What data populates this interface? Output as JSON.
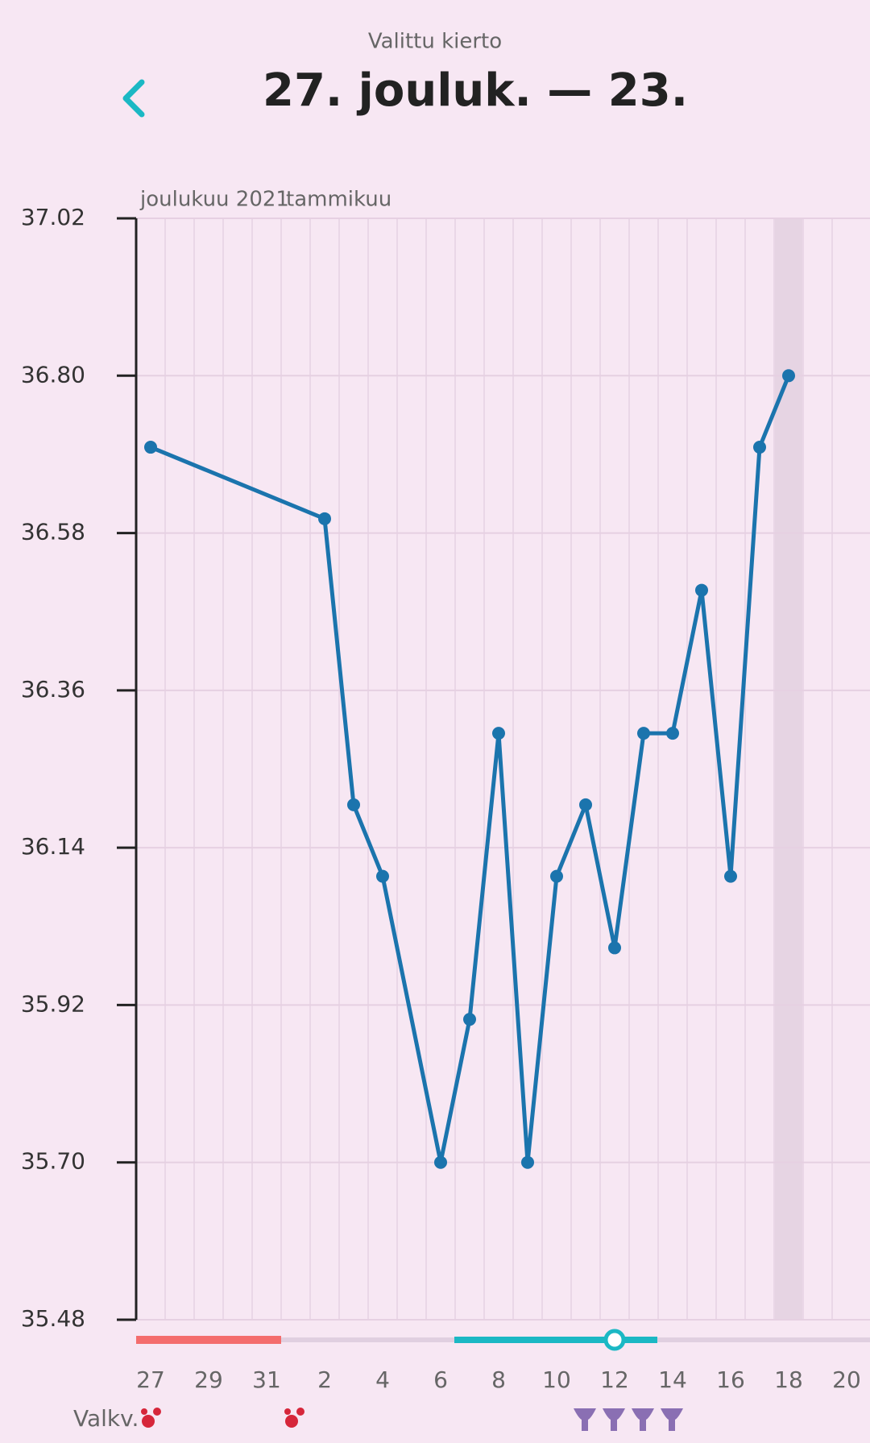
{
  "header": {
    "subtitle": "Valittu kierto",
    "title": "27. jouluk. — 23."
  },
  "chart_data": {
    "type": "line",
    "month_labels": [
      "joulukuu 2021",
      "tammikuu"
    ],
    "categories": [
      "27",
      null,
      "29",
      null,
      "31",
      null,
      "2",
      null,
      "4",
      null,
      "6",
      null,
      "8",
      null,
      "10",
      null,
      "12",
      null,
      "14",
      null,
      "16",
      null,
      "18",
      null,
      "20"
    ],
    "series": [
      {
        "color": "#1b74ad",
        "values": [
          36.7,
          null,
          null,
          null,
          null,
          null,
          36.6,
          36.2,
          36.1,
          null,
          35.7,
          35.9,
          36.3,
          35.7,
          36.1,
          36.2,
          36.0,
          36.3,
          36.3,
          36.5,
          36.1,
          36.7,
          36.8,
          null,
          null
        ]
      }
    ],
    "connect_gaps": true,
    "highlight_index": 22,
    "ylim": [
      35.48,
      37.02
    ],
    "yticks": [
      35.48,
      {
        "value": 35.7,
        "label": "35.70"
      },
      35.92,
      36.14,
      36.36,
      36.58,
      {
        "value": 36.8,
        "label": "36.80"
      },
      37.02
    ],
    "grid": true
  },
  "footer": {
    "label": "Valkv."
  }
}
